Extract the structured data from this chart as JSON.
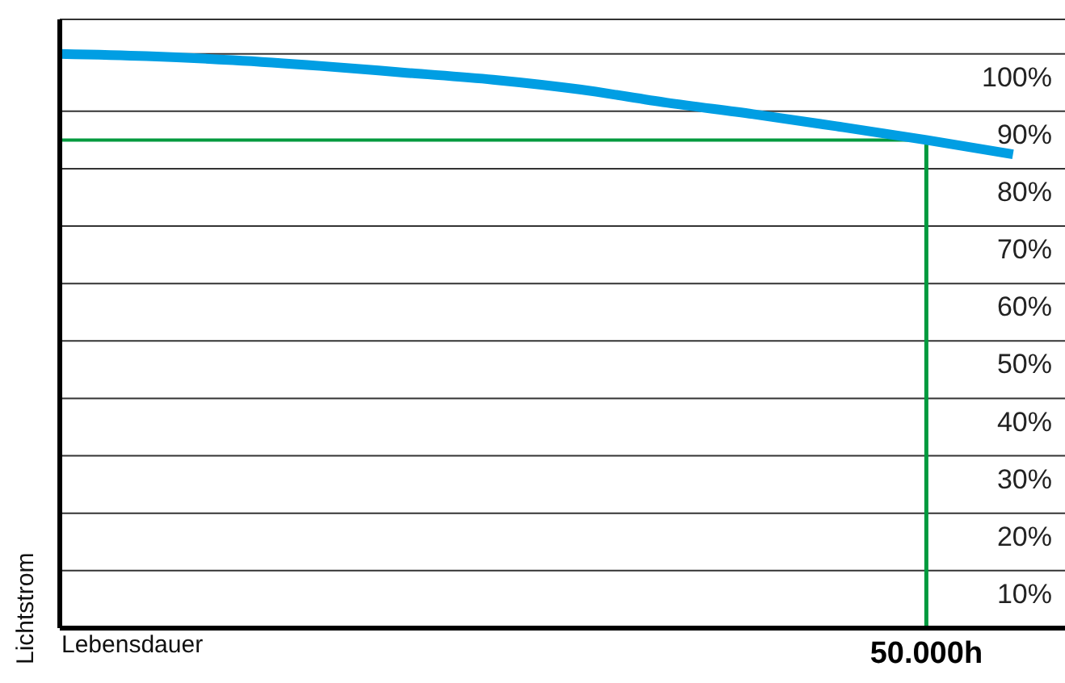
{
  "chart_data": {
    "type": "line",
    "xlabel": "Lebensdauer",
    "ylabel": "Lichtstrom",
    "categories": [
      null,
      null,
      null,
      null,
      null,
      null,
      null,
      null,
      null,
      null,
      "50.000h",
      null
    ],
    "series": [
      {
        "color": "#009ee3",
        "values": [
          100,
          99.6,
          98.9,
          97.9,
          96.7,
          95.5,
          93.8,
          91.5,
          89.5,
          87.3,
          85,
          82.5
        ]
      }
    ],
    "ylim": [
      0,
      106
    ],
    "yticks": [
      {
        "value": 10,
        "label": "10%"
      },
      {
        "value": 20,
        "label": "20%"
      },
      {
        "value": 30,
        "label": "30%"
      },
      {
        "value": 40,
        "label": "40%"
      },
      {
        "value": 50,
        "label": "50%"
      },
      {
        "value": 60,
        "label": "60%"
      },
      {
        "value": 70,
        "label": "70%"
      },
      {
        "value": 80,
        "label": "80%"
      },
      {
        "value": 90,
        "label": "90%"
      },
      {
        "value": 100,
        "label": "100%"
      }
    ],
    "grid": "y",
    "marker": "none",
    "line_style": "solid",
    "ref_lines": [
      {
        "axis": "y",
        "value": 85,
        "color": "#009a3e"
      },
      {
        "axis": "x",
        "value": "50.000h",
        "color": "#009a3e"
      }
    ]
  }
}
